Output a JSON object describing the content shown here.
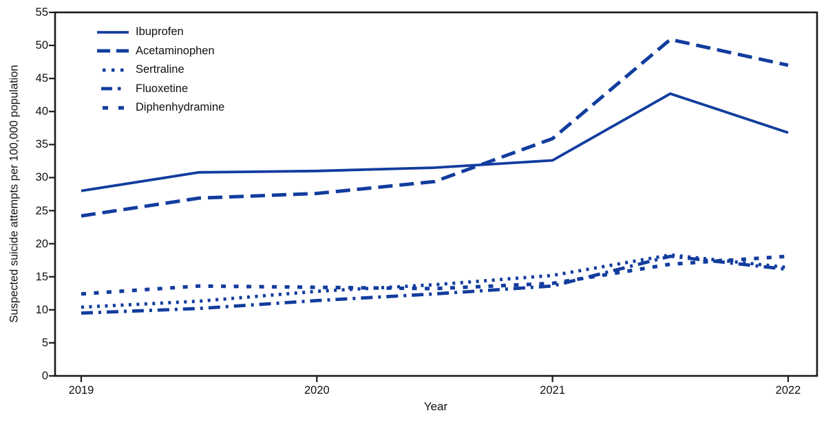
{
  "colors": {
    "line_blue": "#123C9E",
    "axis": "#1A1A1A",
    "background": "#FFFFFF"
  },
  "chart_data": {
    "type": "line",
    "title": "",
    "xlabel": "Year",
    "ylabel": "Suspected suicide attempts per 100,000 population",
    "xlim": [
      2019,
      2022
    ],
    "ylim": [
      0,
      55
    ],
    "yticks": [
      0,
      5,
      10,
      15,
      20,
      25,
      30,
      35,
      40,
      45,
      50,
      55
    ],
    "xticks": [
      2019,
      2020,
      2021,
      2022
    ],
    "xtick_labels": [
      "2019",
      "2020",
      "2021",
      "2022"
    ],
    "grid": "off",
    "legend_position": "top-left",
    "x": [
      2019,
      2019.5,
      2020,
      2020.5,
      2021,
      2021.5,
      2022
    ],
    "series": [
      {
        "name": "Ibuprofen",
        "dash": "solid",
        "values": [
          28.0,
          30.8,
          31.0,
          31.5,
          32.6,
          42.7,
          36.8
        ]
      },
      {
        "name": "Acetaminophen",
        "dash": "long-dash",
        "values": [
          24.2,
          26.9,
          27.6,
          29.4,
          35.9,
          50.9,
          47.0
        ]
      },
      {
        "name": "Sertraline",
        "dash": "dot",
        "values": [
          10.4,
          11.3,
          12.8,
          13.8,
          15.2,
          18.3,
          16.4
        ]
      },
      {
        "name": "Fluoxetine",
        "dash": "dash-dot",
        "values": [
          9.5,
          10.2,
          11.4,
          12.4,
          13.6,
          18.1,
          16.1
        ]
      },
      {
        "name": "Diphenhydramine",
        "dash": "short-dash",
        "values": [
          12.4,
          13.6,
          13.4,
          13.2,
          14.0,
          16.9,
          18.1
        ]
      }
    ]
  }
}
